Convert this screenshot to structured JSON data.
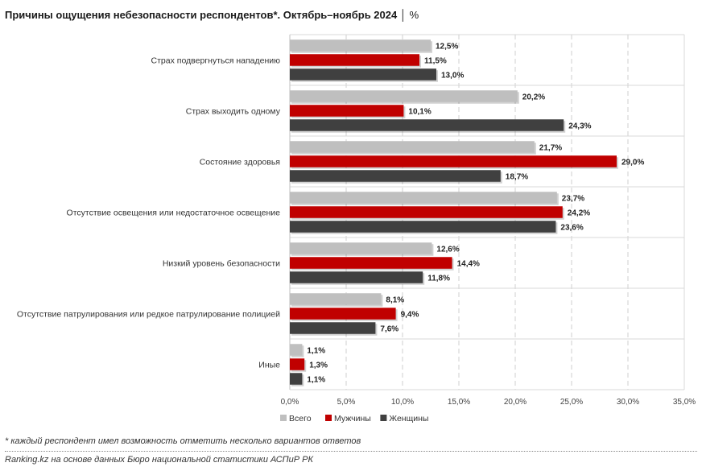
{
  "title": "Причины ощущения небезопасности респондентов*. Октябрь–ноябрь 2024",
  "title_unit": "%",
  "footnote": "* каждый респондент имел возможность отметить несколько вариантов ответов",
  "source": "Ranking.kz на основе данных Бюро национальной статистики АСПиР РК",
  "chart_data": {
    "type": "bar",
    "orientation": "horizontal",
    "categories": [
      "Страх подвергнуться нападению",
      "Страх выходить одному",
      "Состояние здоровья",
      "Отсутствие освещения или недостаточное освещение",
      "Низкий уровень безопасности",
      "Отсутствие патрулирования или редкое патрулирование полицией",
      "Иные"
    ],
    "series": [
      {
        "name": "Всего",
        "color": "#bfbfbf",
        "values": [
          12.5,
          20.2,
          21.7,
          23.7,
          12.6,
          8.1,
          1.1
        ],
        "labels": [
          "12,5%",
          "20,2%",
          "21,7%",
          "23,7%",
          "12,6%",
          "8,1%",
          "1,1%"
        ]
      },
      {
        "name": "Мужчины",
        "color": "#c00000",
        "values": [
          11.5,
          10.1,
          29.0,
          24.2,
          14.4,
          9.4,
          1.3
        ],
        "labels": [
          "11,5%",
          "10,1%",
          "29,0%",
          "24,2%",
          "14,4%",
          "9,4%",
          "1,3%"
        ]
      },
      {
        "name": "Женщины",
        "color": "#404040",
        "values": [
          13.0,
          24.3,
          18.7,
          23.6,
          11.8,
          7.6,
          1.1
        ],
        "labels": [
          "13,0%",
          "24,3%",
          "18,7%",
          "23,6%",
          "11,8%",
          "7,6%",
          "1,1%"
        ]
      }
    ],
    "xlim": [
      0,
      35
    ],
    "ticks": [
      0,
      5,
      10,
      15,
      20,
      25,
      30,
      35
    ],
    "tick_labels": [
      "0,0%",
      "5,0%",
      "10,0%",
      "15,0%",
      "20,0%",
      "25,0%",
      "30,0%",
      "35,0%"
    ],
    "grid": "vertical dashed",
    "legend_position": "bottom"
  }
}
